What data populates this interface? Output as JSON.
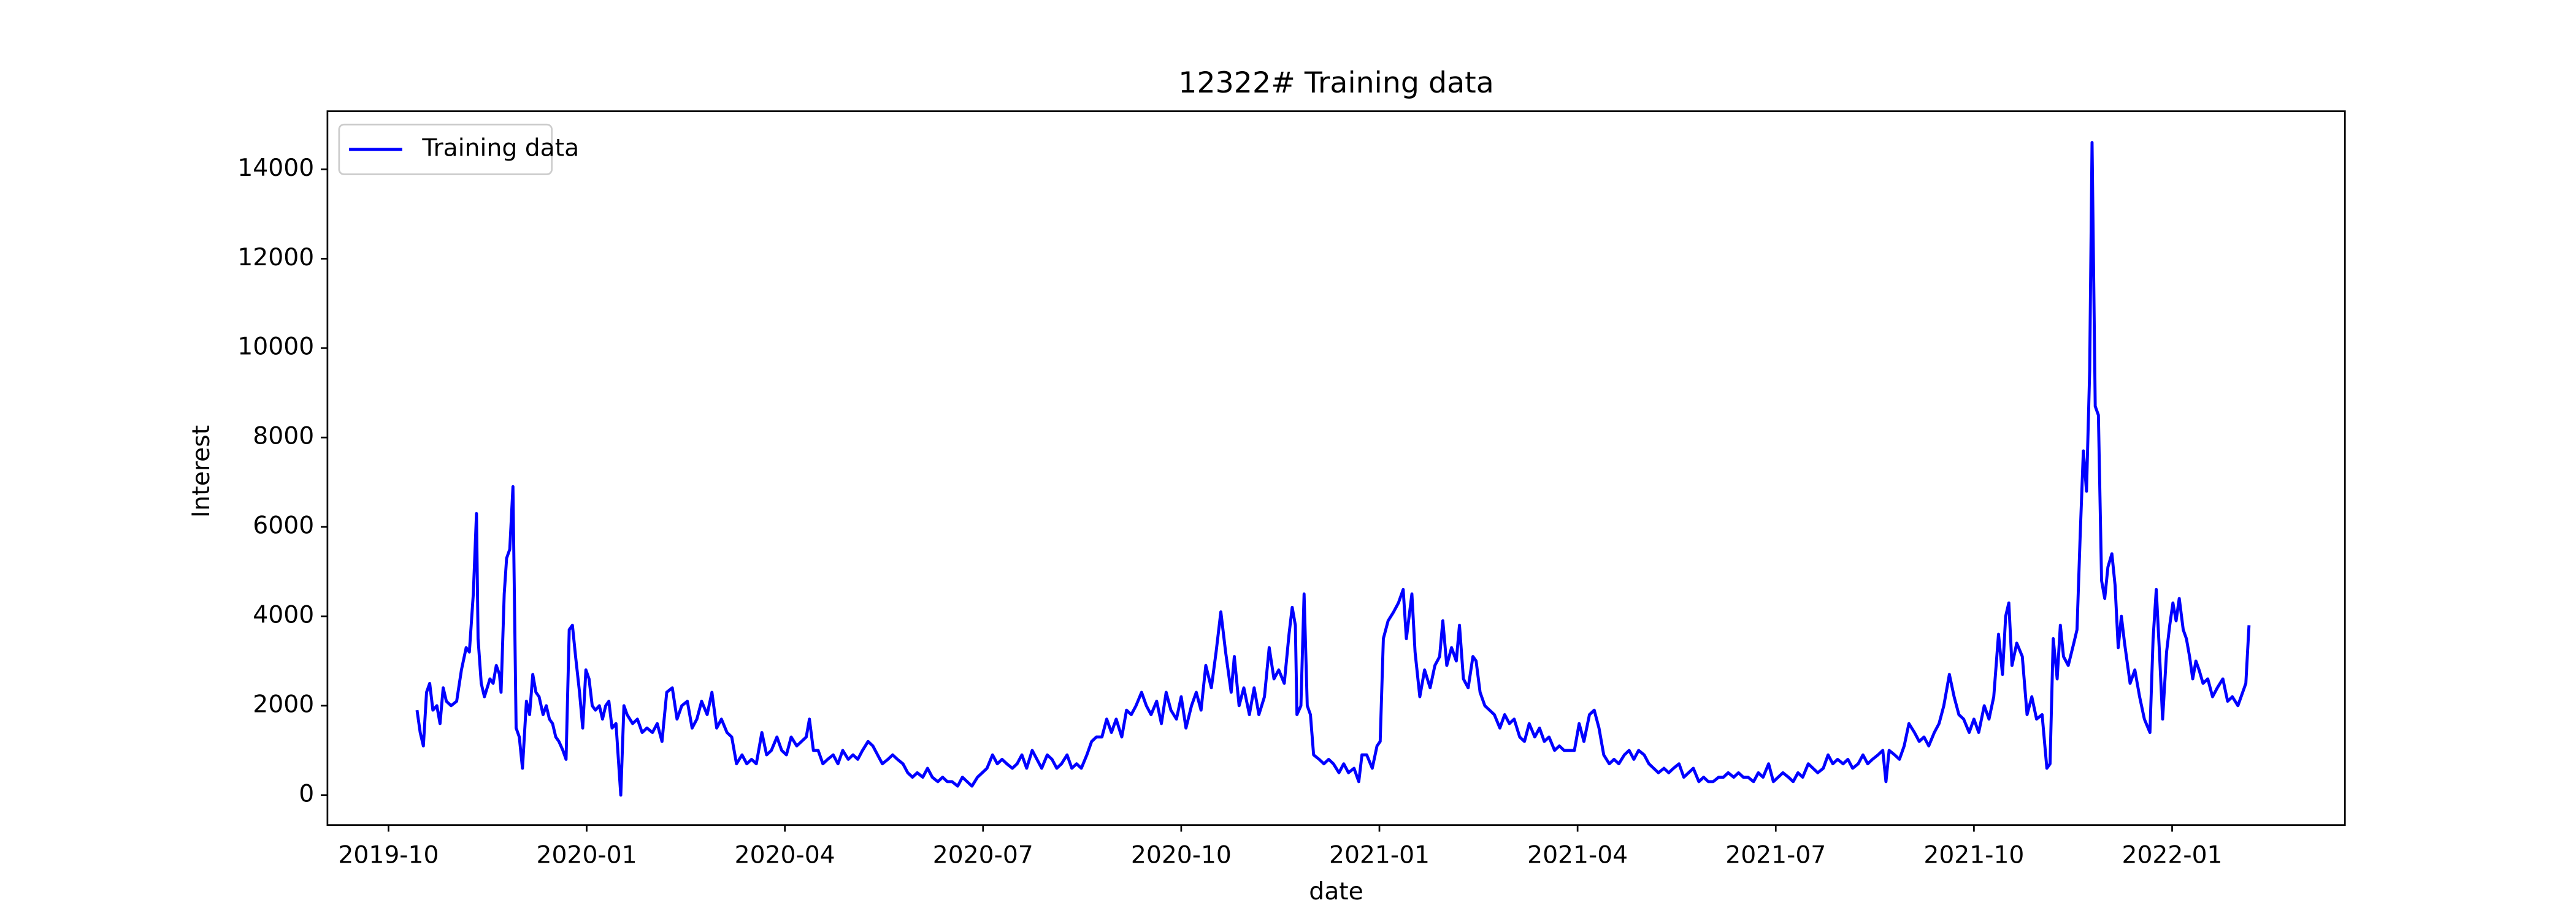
{
  "chart_data": {
    "type": "line",
    "title": "12322# Training data",
    "xlabel": "date",
    "ylabel": "Interest",
    "x": [
      2019.786,
      2019.79,
      2019.794,
      2019.798,
      2019.802,
      2019.806,
      2019.811,
      2019.815,
      2019.819,
      2019.823,
      2019.829,
      2019.836,
      2019.842,
      2019.848,
      2019.852,
      2019.857,
      2019.861,
      2019.863,
      2019.867,
      2019.871,
      2019.878,
      2019.882,
      2019.886,
      2019.89,
      2019.892,
      2019.896,
      2019.899,
      2019.903,
      2019.907,
      2019.911,
      2019.915,
      2019.919,
      2019.924,
      2019.928,
      2019.932,
      2019.936,
      2019.94,
      2019.945,
      2019.949,
      2019.953,
      2019.957,
      2019.961,
      2019.965,
      2019.97,
      2019.974,
      2019.978,
      2019.982,
      2019.986,
      2019.991,
      2019.995,
      2019.999,
      2020.003,
      2020.007,
      2020.011,
      2020.016,
      2020.02,
      2020.024,
      2020.028,
      2020.032,
      2020.037,
      2020.043,
      2020.047,
      2020.051,
      2020.058,
      2020.064,
      2020.07,
      2020.076,
      2020.083,
      2020.089,
      2020.095,
      2020.101,
      2020.108,
      2020.114,
      2020.12,
      2020.127,
      2020.133,
      2020.139,
      2020.145,
      2020.152,
      2020.158,
      2020.164,
      2020.17,
      2020.177,
      2020.183,
      2020.189,
      2020.196,
      2020.202,
      2020.208,
      2020.214,
      2020.221,
      2020.227,
      2020.233,
      2020.24,
      2020.246,
      2020.252,
      2020.258,
      2020.265,
      2020.271,
      2020.277,
      2020.281,
      2020.286,
      2020.292,
      2020.298,
      2020.304,
      2020.311,
      2020.317,
      2020.323,
      2020.33,
      2020.336,
      2020.342,
      2020.348,
      2020.355,
      2020.361,
      2020.367,
      2020.373,
      2020.38,
      2020.386,
      2020.392,
      2020.399,
      2020.405,
      2020.411,
      2020.417,
      2020.424,
      2020.43,
      2020.436,
      2020.443,
      2020.449,
      2020.455,
      2020.461,
      2020.468,
      2020.474,
      2020.48,
      2020.486,
      2020.493,
      2020.499,
      2020.505,
      2020.512,
      2020.518,
      2020.524,
      2020.53,
      2020.537,
      2020.543,
      2020.549,
      2020.555,
      2020.562,
      2020.568,
      2020.574,
      2020.581,
      2020.587,
      2020.593,
      2020.599,
      2020.606,
      2020.612,
      2020.618,
      2020.624,
      2020.631,
      2020.637,
      2020.643,
      2020.65,
      2020.656,
      2020.662,
      2020.668,
      2020.675,
      2020.681,
      2020.687,
      2020.693,
      2020.7,
      2020.706,
      2020.712,
      2020.719,
      2020.725,
      2020.731,
      2020.737,
      2020.744,
      2020.75,
      2020.756,
      2020.763,
      2020.769,
      2020.775,
      2020.781,
      2020.788,
      2020.794,
      2020.8,
      2020.806,
      2020.813,
      2020.817,
      2020.823,
      2020.829,
      2020.836,
      2020.842,
      2020.848,
      2020.855,
      2020.861,
      2020.867,
      2020.873,
      2020.88,
      2020.886,
      2020.89,
      2020.894,
      2020.896,
      2020.901,
      2020.905,
      2020.909,
      2020.913,
      2020.917,
      2020.924,
      2020.93,
      2020.936,
      2020.942,
      2020.949,
      2020.955,
      2020.961,
      2020.968,
      2020.974,
      2020.978,
      2020.984,
      2020.991,
      2020.997,
      2021.001,
      2021.005,
      2021.011,
      2021.018,
      2021.024,
      2021.03,
      2021.034,
      2021.041,
      2021.045,
      2021.051,
      2021.057,
      2021.064,
      2021.07,
      2021.076,
      2021.08,
      2021.085,
      2021.091,
      2021.097,
      2021.101,
      2021.106,
      2021.112,
      2021.118,
      2021.122,
      2021.127,
      2021.133,
      2021.139,
      2021.145,
      2021.152,
      2021.158,
      2021.164,
      2021.17,
      2021.177,
      2021.183,
      2021.189,
      2021.196,
      2021.202,
      2021.208,
      2021.214,
      2021.221,
      2021.227,
      2021.233,
      2021.24,
      2021.246,
      2021.252,
      2021.258,
      2021.265,
      2021.271,
      2021.277,
      2021.283,
      2021.29,
      2021.296,
      2021.302,
      2021.309,
      2021.315,
      2021.321,
      2021.327,
      2021.334,
      2021.34,
      2021.346,
      2021.352,
      2021.359,
      2021.365,
      2021.371,
      2021.378,
      2021.384,
      2021.39,
      2021.396,
      2021.403,
      2021.409,
      2021.415,
      2021.421,
      2021.428,
      2021.434,
      2021.44,
      2021.447,
      2021.453,
      2021.459,
      2021.465,
      2021.472,
      2021.478,
      2021.484,
      2021.491,
      2021.497,
      2021.503,
      2021.509,
      2021.516,
      2021.522,
      2021.528,
      2021.534,
      2021.541,
      2021.547,
      2021.553,
      2021.56,
      2021.566,
      2021.572,
      2021.578,
      2021.585,
      2021.591,
      2021.597,
      2021.604,
      2021.61,
      2021.616,
      2021.622,
      2021.629,
      2021.635,
      2021.639,
      2021.643,
      2021.65,
      2021.656,
      2021.662,
      2021.668,
      2021.675,
      2021.681,
      2021.687,
      2021.693,
      2021.7,
      2021.706,
      2021.712,
      2021.719,
      2021.725,
      2021.731,
      2021.737,
      2021.744,
      2021.75,
      2021.756,
      2021.763,
      2021.769,
      2021.775,
      2021.781,
      2021.786,
      2021.79,
      2021.794,
      2021.798,
      2021.804,
      2021.811,
      2021.817,
      2021.823,
      2021.829,
      2021.836,
      2021.842,
      2021.846,
      2021.85,
      2021.855,
      2021.859,
      2021.863,
      2021.869,
      2021.876,
      2021.88,
      2021.884,
      2021.888,
      2021.892,
      2021.896,
      2021.899,
      2021.903,
      2021.907,
      2021.911,
      2021.915,
      2021.919,
      2021.924,
      2021.928,
      2021.932,
      2021.936,
      2021.94,
      2021.947,
      2021.953,
      2021.959,
      2021.965,
      2021.972,
      2021.976,
      2021.98,
      2021.984,
      2021.988,
      2021.993,
      2021.997,
      2022.001,
      2022.005,
      2022.009,
      2022.014,
      2022.018,
      2022.022,
      2022.026,
      2022.03,
      2022.034,
      2022.039,
      2022.045,
      2022.051,
      2022.057,
      2022.064,
      2022.07,
      2022.076,
      2022.083,
      2022.089,
      2022.093,
      2022.097
    ],
    "series": [
      {
        "name": "Training data",
        "color": "#0000ff",
        "values": [
          1900,
          1400,
          1100,
          2300,
          2500,
          1900,
          2000,
          1600,
          2400,
          2100,
          2000,
          2100,
          2800,
          3300,
          3200,
          4500,
          6300,
          3500,
          2500,
          2200,
          2600,
          2500,
          2900,
          2700,
          2300,
          4500,
          5300,
          5500,
          6900,
          1500,
          1300,
          600,
          2100,
          1800,
          2700,
          2300,
          2200,
          1800,
          2000,
          1700,
          1600,
          1300,
          1200,
          1000,
          800,
          3700,
          3800,
          3100,
          2300,
          1500,
          2800,
          2600,
          2000,
          1900,
          2000,
          1700,
          2000,
          2100,
          1500,
          1600,
          0,
          2000,
          1800,
          1600,
          1700,
          1400,
          1500,
          1400,
          1600,
          1200,
          2300,
          2400,
          1700,
          2000,
          2100,
          1500,
          1700,
          2100,
          1800,
          2300,
          1500,
          1700,
          1400,
          1300,
          700,
          900,
          700,
          800,
          700,
          1400,
          900,
          1000,
          1300,
          1000,
          900,
          1300,
          1100,
          1200,
          1300,
          1700,
          1000,
          1000,
          700,
          800,
          900,
          700,
          1000,
          800,
          900,
          800,
          1000,
          1200,
          1100,
          900,
          700,
          800,
          900,
          800,
          700,
          500,
          400,
          500,
          400,
          600,
          400,
          300,
          400,
          300,
          300,
          200,
          400,
          300,
          200,
          400,
          500,
          600,
          900,
          700,
          800,
          700,
          600,
          700,
          900,
          600,
          1000,
          800,
          600,
          900,
          800,
          600,
          700,
          900,
          600,
          700,
          600,
          900,
          1200,
          1300,
          1300,
          1700,
          1400,
          1700,
          1300,
          1900,
          1800,
          2000,
          2300,
          2000,
          1800,
          2100,
          1600,
          2300,
          1900,
          1700,
          2200,
          1500,
          2000,
          2300,
          1900,
          2900,
          2400,
          3200,
          4100,
          3200,
          2300,
          3100,
          2000,
          2400,
          1800,
          2400,
          1800,
          2200,
          3300,
          2600,
          2800,
          2500,
          3600,
          4200,
          3800,
          1800,
          2000,
          4500,
          2000,
          1800,
          900,
          800,
          700,
          800,
          700,
          500,
          700,
          500,
          600,
          300,
          900,
          900,
          600,
          1100,
          1200,
          3500,
          3900,
          4100,
          4300,
          4600,
          3500,
          4500,
          3200,
          2200,
          2800,
          2400,
          2900,
          3100,
          3900,
          2900,
          3300,
          3000,
          3800,
          2600,
          2400,
          3100,
          3000,
          2300,
          2000,
          1900,
          1800,
          1500,
          1800,
          1600,
          1700,
          1300,
          1200,
          1600,
          1300,
          1500,
          1200,
          1300,
          1000,
          1100,
          1000,
          1000,
          1000,
          1600,
          1200,
          1800,
          1900,
          1500,
          900,
          700,
          800,
          700,
          900,
          1000,
          800,
          1000,
          900,
          700,
          600,
          500,
          600,
          500,
          600,
          700,
          400,
          500,
          600,
          300,
          400,
          300,
          300,
          400,
          400,
          500,
          400,
          500,
          400,
          400,
          300,
          500,
          400,
          700,
          300,
          400,
          500,
          400,
          300,
          500,
          400,
          700,
          600,
          500,
          600,
          900,
          700,
          800,
          700,
          800,
          600,
          700,
          900,
          700,
          800,
          900,
          1000,
          300,
          1000,
          900,
          800,
          1100,
          1600,
          1400,
          1200,
          1300,
          1100,
          1400,
          1600,
          2000,
          2700,
          2200,
          1800,
          1700,
          1400,
          1700,
          1400,
          2000,
          1700,
          2200,
          3600,
          2700,
          4000,
          4300,
          2900,
          3400,
          3100,
          1800,
          2200,
          1700,
          1800,
          600,
          700,
          3500,
          2600,
          3800,
          3100,
          2900,
          3400,
          3700,
          5800,
          7700,
          6800,
          9500,
          14600,
          8700,
          8500,
          4800,
          4400,
          5100,
          5400,
          4700,
          3300,
          4000,
          3400,
          2500,
          2800,
          2200,
          1700,
          1400,
          3500,
          4600,
          3200,
          1700,
          3200,
          3800,
          4300,
          3900,
          4400,
          3700,
          3500,
          3100,
          2600,
          3000,
          2800,
          2500,
          2600,
          2200,
          2400,
          2600,
          2100,
          2200,
          2000,
          2300,
          2500,
          3800
        ]
      }
    ],
    "xlim": [
      2019.673,
      2022.218
    ],
    "xticks": [
      {
        "value": 2019.75,
        "label": "2019-10"
      },
      {
        "value": 2020,
        "label": "2020-01"
      },
      {
        "value": 2020.25,
        "label": "2020-04"
      },
      {
        "value": 2020.5,
        "label": "2020-07"
      },
      {
        "value": 2020.75,
        "label": "2020-10"
      },
      {
        "value": 2021,
        "label": "2021-01"
      },
      {
        "value": 2021.25,
        "label": "2021-04"
      },
      {
        "value": 2021.5,
        "label": "2021-07"
      },
      {
        "value": 2021.75,
        "label": "2021-10"
      },
      {
        "value": 2022,
        "label": "2022-01"
      }
    ],
    "ylim": [
      -670,
      15300
    ],
    "yticks": [
      0,
      2000,
      4000,
      6000,
      8000,
      10000,
      12000,
      14000
    ],
    "legend": "upper left"
  }
}
